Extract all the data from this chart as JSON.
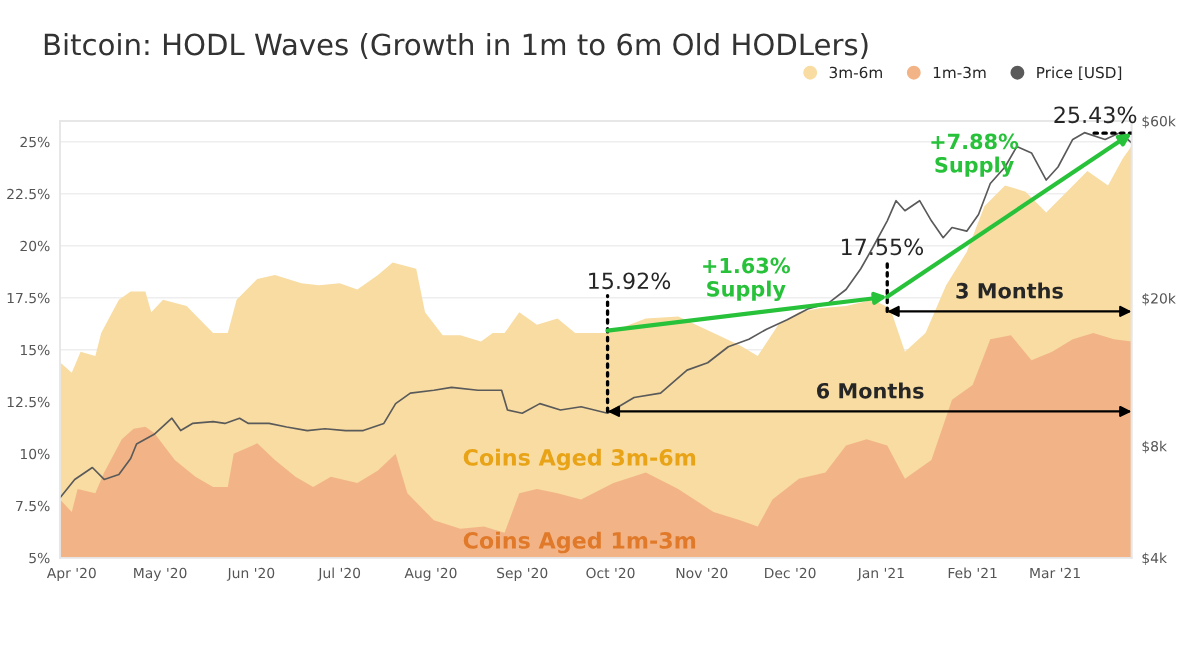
{
  "chart_data": {
    "type": "area",
    "title": "Bitcoin: HODL Waves (Growth in 1m to 6m Old HODLers)",
    "series": [
      {
        "name": "3m-6m",
        "color": "#f8dca2",
        "x": [
          "2020-03-28",
          "2020-04-01",
          "2020-04-04",
          "2020-04-09",
          "2020-04-11",
          "2020-04-17",
          "2020-04-21",
          "2020-04-26",
          "2020-04-28",
          "2020-05-02",
          "2020-05-10",
          "2020-05-19",
          "2020-05-24",
          "2020-05-27",
          "2020-06-03",
          "2020-06-09",
          "2020-06-18",
          "2020-06-24",
          "2020-07-01",
          "2020-07-07",
          "2020-07-14",
          "2020-07-19",
          "2020-07-27",
          "2020-07-30",
          "2020-08-05",
          "2020-08-11",
          "2020-08-18",
          "2020-08-22",
          "2020-08-26",
          "2020-08-31",
          "2020-09-06",
          "2020-09-13",
          "2020-09-19",
          "2020-09-30",
          "2020-10-13",
          "2020-10-24",
          "2020-11-05",
          "2020-11-14",
          "2020-11-20",
          "2020-11-27",
          "2020-12-04",
          "2020-12-11",
          "2020-12-20",
          "2020-12-29",
          "2021-01-04",
          "2021-01-09",
          "2021-01-16",
          "2021-01-23",
          "2021-01-30",
          "2021-02-05",
          "2021-02-12",
          "2021-02-19",
          "2021-02-26",
          "2021-03-05",
          "2021-03-12",
          "2021-03-19",
          "2021-03-24",
          "2021-03-27"
        ],
        "values": [
          14.4,
          13.9,
          14.9,
          14.7,
          15.8,
          17.4,
          17.8,
          17.8,
          16.8,
          17.4,
          17.1,
          15.8,
          15.8,
          17.4,
          18.4,
          18.6,
          18.2,
          18.1,
          18.2,
          17.9,
          18.6,
          19.2,
          18.9,
          16.8,
          15.7,
          15.7,
          15.4,
          15.8,
          15.8,
          16.8,
          16.2,
          16.5,
          15.8,
          15.8,
          16.5,
          16.6,
          15.8,
          15.2,
          14.7,
          16.2,
          16.8,
          17.0,
          17.1,
          17.4,
          17.0,
          14.9,
          15.8,
          18.1,
          19.7,
          21.9,
          22.9,
          22.6,
          21.6,
          22.6,
          23.6,
          22.9,
          24.2,
          24.8
        ]
      },
      {
        "name": "1m-3m",
        "color": "#f2b486",
        "x": [
          "2020-03-28",
          "2020-04-01",
          "2020-04-03",
          "2020-04-09",
          "2020-04-12",
          "2020-04-18",
          "2020-04-22",
          "2020-04-26",
          "2020-04-29",
          "2020-05-06",
          "2020-05-13",
          "2020-05-19",
          "2020-05-24",
          "2020-05-26",
          "2020-06-03",
          "2020-06-09",
          "2020-06-16",
          "2020-06-22",
          "2020-06-28",
          "2020-07-07",
          "2020-07-14",
          "2020-07-20",
          "2020-07-24",
          "2020-08-02",
          "2020-08-11",
          "2020-08-19",
          "2020-08-26",
          "2020-08-31",
          "2020-09-06",
          "2020-09-13",
          "2020-09-21",
          "2020-10-02",
          "2020-10-13",
          "2020-10-24",
          "2020-11-05",
          "2020-11-14",
          "2020-11-20",
          "2020-11-25",
          "2020-12-04",
          "2020-12-13",
          "2020-12-20",
          "2020-12-27",
          "2021-01-03",
          "2021-01-09",
          "2021-01-18",
          "2021-01-25",
          "2021-02-01",
          "2021-02-07",
          "2021-02-14",
          "2021-02-21",
          "2021-02-28",
          "2021-03-07",
          "2021-03-14",
          "2021-03-21",
          "2021-03-27"
        ],
        "values": [
          7.8,
          7.2,
          8.3,
          8.1,
          9.1,
          10.7,
          11.2,
          11.3,
          11.0,
          9.7,
          8.9,
          8.4,
          8.4,
          10.0,
          10.5,
          9.7,
          8.9,
          8.4,
          8.9,
          8.6,
          9.2,
          10.0,
          8.1,
          6.8,
          6.4,
          6.5,
          6.2,
          8.1,
          8.3,
          8.1,
          7.8,
          8.6,
          9.1,
          8.3,
          7.2,
          6.8,
          6.5,
          7.8,
          8.8,
          9.1,
          10.4,
          10.7,
          10.4,
          8.8,
          9.7,
          12.6,
          13.3,
          15.5,
          15.7,
          14.5,
          14.9,
          15.5,
          15.8,
          15.5,
          15.4
        ]
      },
      {
        "name": "Price [USD]",
        "color": "#5a5a5a",
        "type": "line",
        "axis": "y2",
        "x": [
          "2020-03-28",
          "2020-04-02",
          "2020-04-08",
          "2020-04-12",
          "2020-04-17",
          "2020-04-21",
          "2020-04-23",
          "2020-04-29",
          "2020-05-05",
          "2020-05-08",
          "2020-05-12",
          "2020-05-19",
          "2020-05-23",
          "2020-05-28",
          "2020-05-31",
          "2020-06-07",
          "2020-06-13",
          "2020-06-20",
          "2020-06-26",
          "2020-07-03",
          "2020-07-09",
          "2020-07-16",
          "2020-07-20",
          "2020-07-25",
          "2020-08-02",
          "2020-08-08",
          "2020-08-17",
          "2020-08-25",
          "2020-08-27",
          "2020-09-01",
          "2020-09-07",
          "2020-09-14",
          "2020-09-21",
          "2020-09-30",
          "2020-10-09",
          "2020-10-18",
          "2020-10-27",
          "2020-11-03",
          "2020-11-10",
          "2020-11-17",
          "2020-11-23",
          "2020-11-30",
          "2020-12-07",
          "2020-12-14",
          "2020-12-20",
          "2020-12-25",
          "2020-12-29",
          "2021-01-03",
          "2021-01-06",
          "2021-01-09",
          "2021-01-14",
          "2021-01-18",
          "2021-01-22",
          "2021-01-25",
          "2021-01-30",
          "2021-02-03",
          "2021-02-07",
          "2021-02-12",
          "2021-02-16",
          "2021-02-21",
          "2021-02-26",
          "2021-03-02",
          "2021-03-07",
          "2021-03-11",
          "2021-03-18",
          "2021-03-23",
          "2021-03-27"
        ],
        "values": [
          5800,
          6500,
          7000,
          6500,
          6700,
          7400,
          8100,
          8600,
          9500,
          8800,
          9200,
          9300,
          9200,
          9500,
          9200,
          9200,
          9000,
          8800,
          8900,
          8800,
          8800,
          9200,
          10400,
          11100,
          11300,
          11500,
          11300,
          11300,
          10000,
          9800,
          10400,
          10000,
          10200,
          9800,
          10800,
          11100,
          12800,
          13400,
          14800,
          15500,
          16500,
          17500,
          18700,
          19400,
          21100,
          24000,
          27300,
          32300,
          36600,
          34400,
          36600,
          32300,
          29100,
          31000,
          30300,
          33600,
          40700,
          45100,
          51200,
          49200,
          41600,
          45100,
          53500,
          55800,
          53500,
          55800,
          52400
        ]
      }
    ],
    "xlim": [
      "2020-03-28",
      "2021-03-27"
    ],
    "xticks": [
      {
        "value": "2020-04-01",
        "label": "Apr '20"
      },
      {
        "value": "2020-05-01",
        "label": "May '20"
      },
      {
        "value": "2020-06-01",
        "label": "Jun '20"
      },
      {
        "value": "2020-07-01",
        "label": "Jul '20"
      },
      {
        "value": "2020-08-01",
        "label": "Aug '20"
      },
      {
        "value": "2020-09-01",
        "label": "Sep '20"
      },
      {
        "value": "2020-10-01",
        "label": "Oct '20"
      },
      {
        "value": "2020-11-01",
        "label": "Nov '20"
      },
      {
        "value": "2020-12-01",
        "label": "Dec '20"
      },
      {
        "value": "2021-01-01",
        "label": "Jan '21"
      },
      {
        "value": "2021-02-01",
        "label": "Feb '21"
      },
      {
        "value": "2021-03-01",
        "label": "Mar '21"
      }
    ],
    "ylim": [
      5,
      26
    ],
    "yticks": [
      {
        "value": 5,
        "label": "5%"
      },
      {
        "value": 7.5,
        "label": "7.5%"
      },
      {
        "value": 10,
        "label": "10%"
      },
      {
        "value": 12.5,
        "label": "12.5%"
      },
      {
        "value": 15,
        "label": "15%"
      },
      {
        "value": 17.5,
        "label": "17.5%"
      },
      {
        "value": 20,
        "label": "20%"
      },
      {
        "value": 22.5,
        "label": "22.5%"
      },
      {
        "value": 25,
        "label": "25%"
      }
    ],
    "log": "y2",
    "y2lim": [
      4000,
      60000
    ],
    "y2ticks": [
      {
        "value": 4000,
        "label": "$4k"
      },
      {
        "value": 8000,
        "label": "$8k"
      },
      {
        "value": 20000,
        "label": "$20k"
      },
      {
        "value": 60000,
        "label": "$60k"
      }
    ],
    "grid": "y",
    "legend": "top right",
    "annotations": [
      {
        "text": "15.92%",
        "x": "2020-09-30",
        "y": 15.92
      },
      {
        "text": "17.55%",
        "x": "2021-01-03",
        "y": 17.55
      },
      "25.43%",
      "+1.63%\nSupply",
      "+7.88%\nSupply",
      "3 Months",
      "6 Months",
      "Coins Aged 3m-6m",
      "Coins Aged 1m-3m"
    ]
  }
}
